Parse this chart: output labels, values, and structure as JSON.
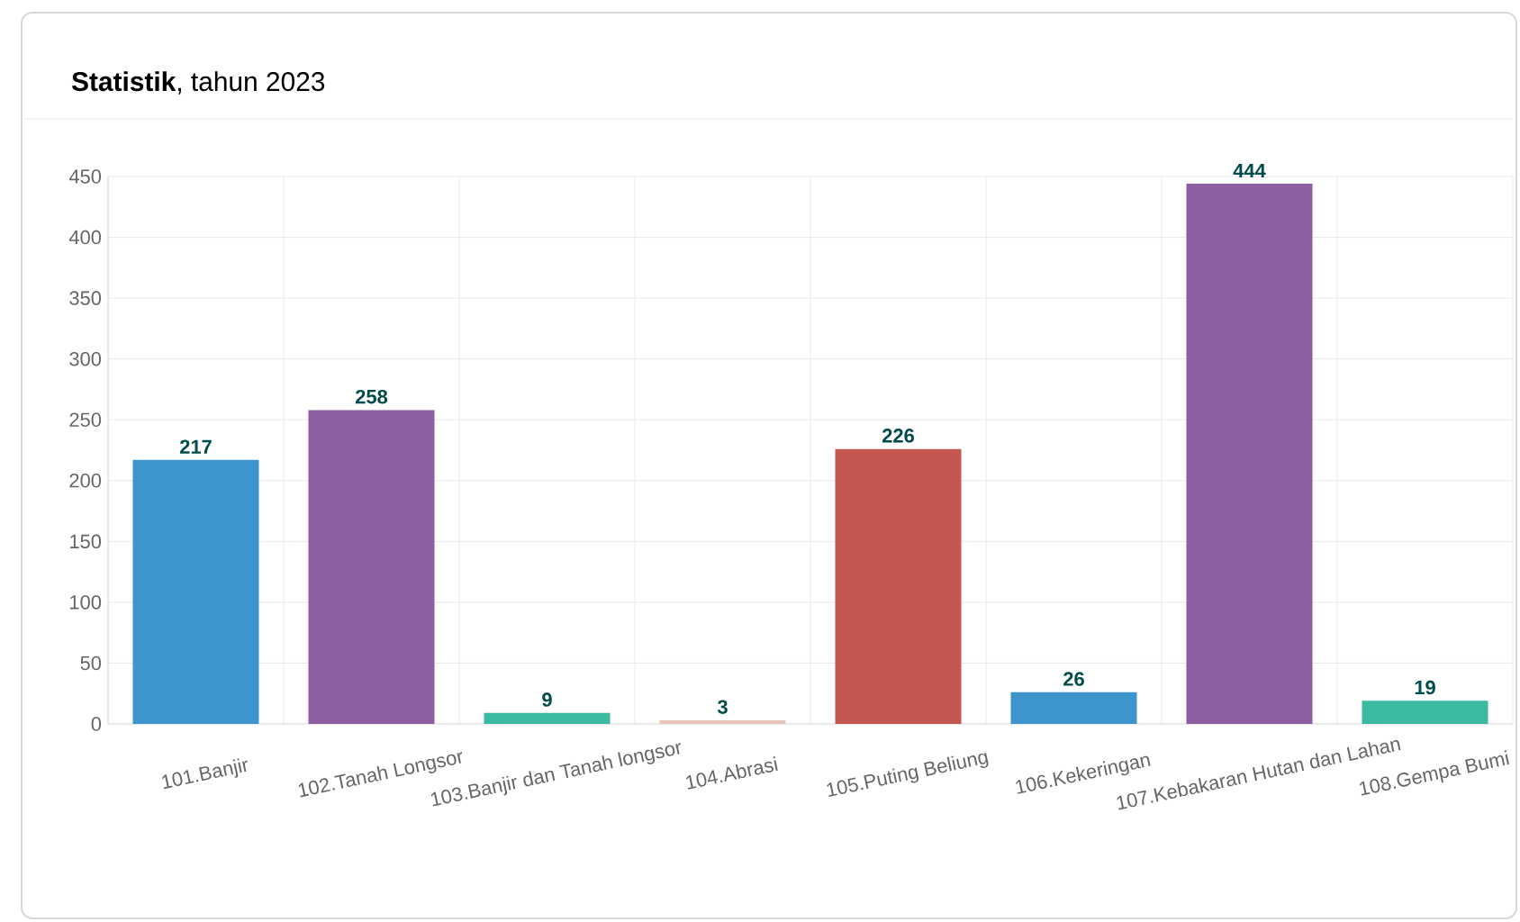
{
  "chart_data": {
    "type": "bar",
    "title": "**Statistik**, tahun 2023",
    "categories": [
      "101.Banjir",
      "102.Tanah Longsor",
      "103.Banjir dan Tanah longsor",
      "104.Abrasi",
      "105.Puting Beliung",
      "106.Kekeringan",
      "107.Kebakaran Hutan dan Lahan",
      "108.Gempa Bumi"
    ],
    "values": [
      217,
      258,
      9,
      3,
      226,
      26,
      444,
      19
    ],
    "colors": [
      "#3e95cd",
      "#8e5ea2",
      "#3cba9f",
      "#e8c3b9",
      "#c45850",
      "#3e95cd",
      "#8e5ea2",
      "#3cba9f"
    ],
    "ylim": [
      0,
      450
    ],
    "yticks": [
      0,
      50,
      100,
      150,
      200,
      250,
      300,
      350,
      400,
      450
    ],
    "grid": true,
    "data_labels": true
  }
}
